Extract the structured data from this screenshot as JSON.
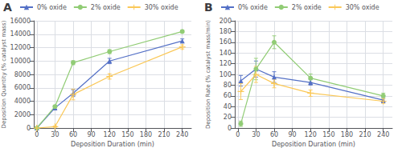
{
  "chart_data": [
    {
      "type": "line",
      "title": "A",
      "x": [
        0,
        30,
        60,
        120,
        240
      ],
      "series": [
        {
          "name": "0% oxide",
          "marker": "triangle",
          "values": [
            0,
            3000,
            5200,
            10000,
            13000
          ],
          "errors": [
            0,
            200,
            500,
            400,
            300
          ]
        },
        {
          "name": "2% oxide",
          "marker": "circle",
          "values": [
            0,
            3200,
            9750,
            11400,
            14400
          ],
          "errors": [
            0,
            200,
            300,
            300,
            200
          ]
        },
        {
          "name": "30% oxide",
          "marker": "plus",
          "values": [
            0,
            200,
            5000,
            7700,
            12100
          ],
          "errors": [
            0,
            100,
            800,
            400,
            300
          ]
        }
      ],
      "xlabel": "Deposition Duration (min)",
      "ylabel": "Deposition Quantity (% catalyst mass)",
      "xlim": [
        -5,
        255
      ],
      "xticks": [
        0,
        30,
        60,
        90,
        120,
        150,
        180,
        210,
        240
      ],
      "ylim": [
        0,
        16000
      ],
      "yticks": [
        0,
        2000,
        4000,
        6000,
        8000,
        10000,
        12000,
        14000,
        16000
      ],
      "grid": true,
      "legend": "upper left"
    },
    {
      "type": "line",
      "title": "B",
      "x": [
        5,
        30,
        60,
        120,
        240
      ],
      "series": [
        {
          "name": "0% oxide",
          "marker": "triangle",
          "values": [
            88,
            110,
            95,
            85,
            52
          ],
          "errors": [
            10,
            15,
            10,
            5,
            5
          ]
        },
        {
          "name": "2% oxide",
          "marker": "circle",
          "values": [
            8,
            110,
            160,
            93,
            60
          ],
          "errors": [
            5,
            20,
            12,
            8,
            5
          ]
        },
        {
          "name": "30% oxide",
          "marker": "plus",
          "values": [
            68,
            100,
            83,
            65,
            50
          ],
          "errors": [
            15,
            15,
            8,
            6,
            4
          ]
        }
      ],
      "xlabel": "Deposition Duration (min)",
      "ylabel": "Deposition Rate (% catalyst mass/min)",
      "xlim": [
        -5,
        255
      ],
      "xticks": [
        0,
        30,
        60,
        90,
        120,
        150,
        180,
        210,
        240
      ],
      "ylim": [
        0,
        200
      ],
      "yticks": [
        0,
        20,
        40,
        60,
        80,
        100,
        120,
        140,
        160,
        180,
        200
      ],
      "grid": true,
      "legend": "upper left"
    }
  ]
}
